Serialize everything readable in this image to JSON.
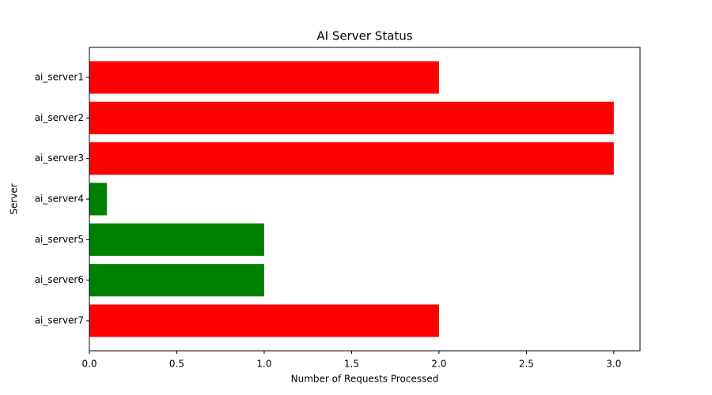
{
  "chart_data": {
    "type": "barh",
    "title": "AI Server Status",
    "x_label": "Number of Requests Processed",
    "y_label": "Server",
    "categories": [
      "ai_server1",
      "ai_server2",
      "ai_server3",
      "ai_server4",
      "ai_server5",
      "ai_server6",
      "ai_server7"
    ],
    "values": [
      2,
      3,
      3,
      0.1,
      1,
      1,
      2
    ],
    "colors": [
      "#ff0000",
      "#ff0000",
      "#ff0000",
      "#008000",
      "#008000",
      "#008000",
      "#ff0000"
    ],
    "xlim": [
      0,
      3.15
    ],
    "xticks": [
      {
        "value": 0,
        "label": "0.0"
      },
      {
        "value": 0.5,
        "label": "0.5"
      },
      {
        "value": 1,
        "label": "1.0"
      },
      {
        "value": 1.5,
        "label": "1.5"
      },
      {
        "value": 2,
        "label": "2.0"
      },
      {
        "value": 2.5,
        "label": "2.5"
      },
      {
        "value": 3,
        "label": "3.0"
      }
    ],
    "grid": false
  }
}
